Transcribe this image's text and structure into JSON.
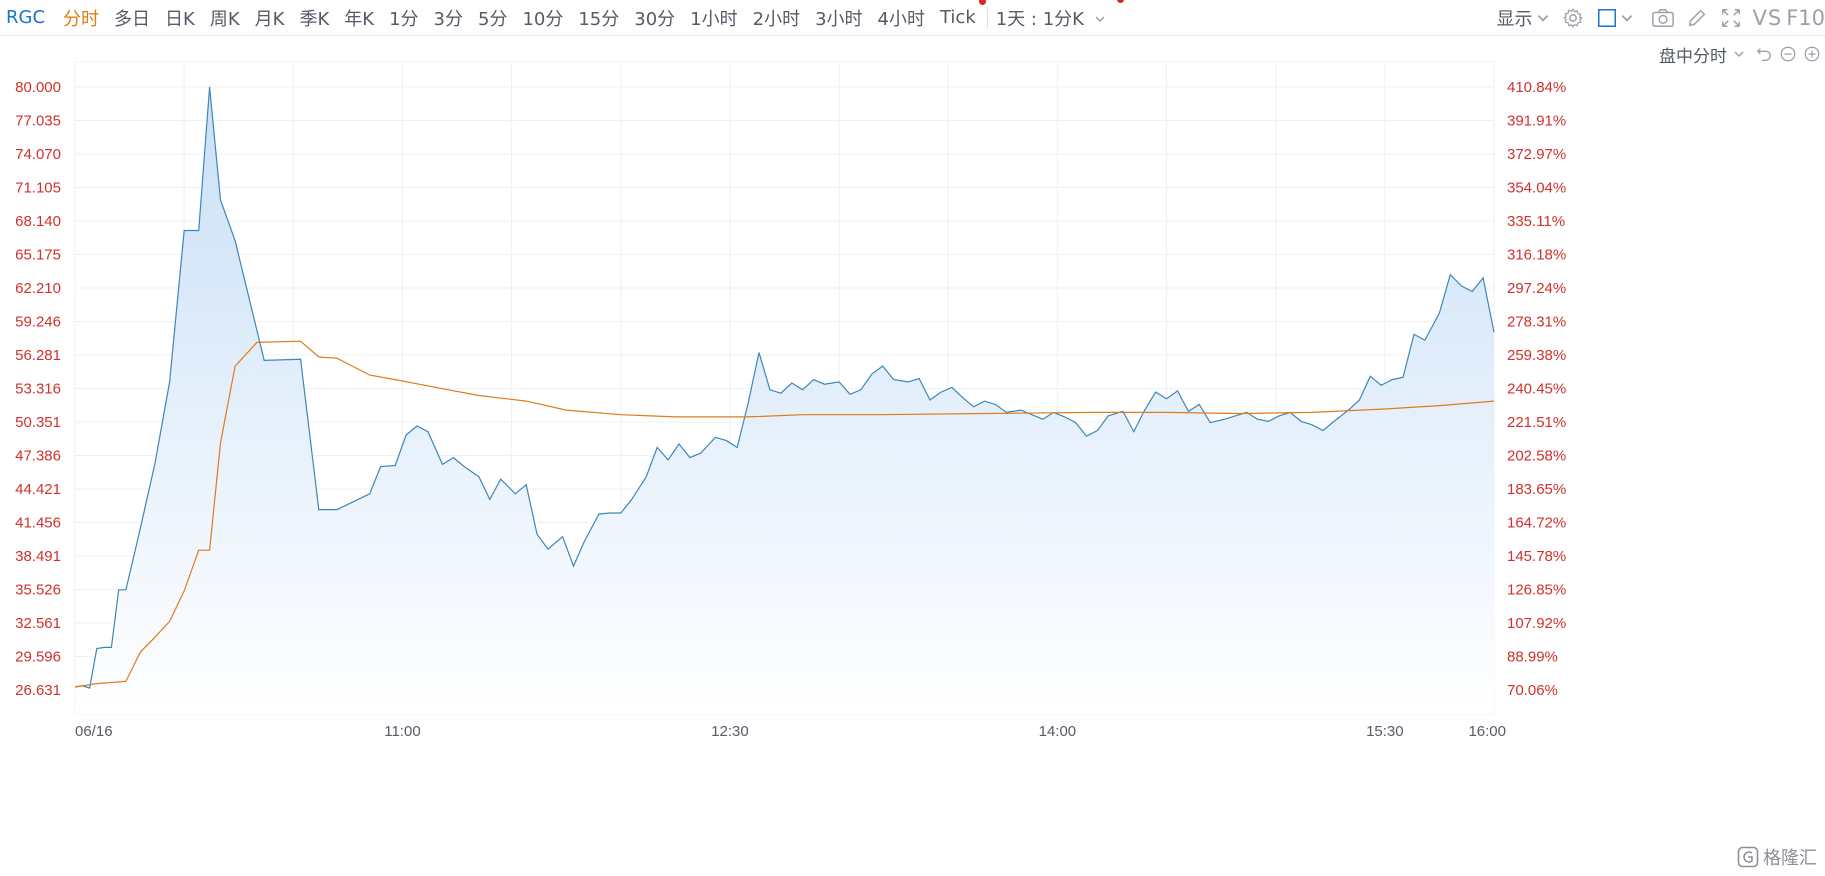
{
  "toolbar": {
    "symbol": "RGC",
    "tabs": [
      "分时",
      "多日",
      "日K",
      "周K",
      "月K",
      "季K",
      "年K",
      "1分",
      "3分",
      "5分",
      "10分",
      "15分",
      "30分",
      "1小时",
      "2小时",
      "3小时",
      "4小时",
      "Tick"
    ],
    "active_tab": "分时",
    "period_selector": "1天 : 1分K",
    "display_label": "显示",
    "vs_label": "VS",
    "f10_label": "F10"
  },
  "subbar": {
    "mode_label": "盘中分时"
  },
  "watermark": {
    "text": "格隆汇"
  },
  "colors": {
    "price_line": "#3d87b8",
    "avg_line": "#e07b1a",
    "fill_top": "#c9dff7",
    "fill_bottom": "#ffffff",
    "axis_text": "#d0312d",
    "grid": "#eef0f4",
    "accent": "#1a73c7"
  },
  "chart_data": {
    "type": "area",
    "y_ticks": [
      "80.000",
      "77.035",
      "74.070",
      "71.105",
      "68.140",
      "65.175",
      "62.210",
      "59.246",
      "56.281",
      "53.316",
      "50.351",
      "47.386",
      "44.421",
      "41.456",
      "38.491",
      "35.526",
      "32.561",
      "29.596",
      "26.631"
    ],
    "pct_ticks": [
      "410.84%",
      "391.91%",
      "372.97%",
      "354.04%",
      "335.11%",
      "316.18%",
      "297.24%",
      "278.31%",
      "259.38%",
      "240.45%",
      "221.51%",
      "202.58%",
      "183.65%",
      "164.72%",
      "145.78%",
      "126.85%",
      "107.92%",
      "88.99%",
      "70.06%"
    ],
    "x_labels": [
      "06/16",
      "11:00",
      "12:30",
      "14:00",
      "15:30",
      "16:00"
    ],
    "ylim": [
      26.631,
      80.0
    ],
    "x_range": [
      "09:30",
      "16:00"
    ],
    "grid": true,
    "series": [
      {
        "key": "price",
        "x": [
          0,
          2,
          4,
          6,
          8,
          10,
          12,
          14,
          18,
          22,
          26,
          30,
          34,
          37,
          40,
          44,
          52,
          62,
          67,
          72,
          81,
          84,
          88,
          91,
          94,
          97,
          101,
          104,
          107,
          111,
          114,
          117,
          121,
          124,
          127,
          130,
          134,
          137,
          140,
          144,
          147,
          150,
          153,
          157,
          160,
          163,
          166,
          169,
          172,
          176,
          179,
          182,
          185,
          188,
          191,
          194,
          197,
          200,
          203,
          206,
          210,
          213,
          216,
          219,
          222,
          225,
          229,
          232,
          235,
          238,
          241,
          244,
          247,
          250,
          253,
          256,
          260,
          263,
          266,
          269,
          272,
          275,
          278,
          281,
          284,
          288,
          291,
          294,
          297,
          300,
          303,
          306,
          309,
          312,
          316,
          319,
          322,
          325,
          328,
          331,
          334,
          337,
          340,
          343,
          346,
          350,
          353,
          356,
          359,
          362,
          365,
          368,
          371,
          375,
          378,
          381,
          384,
          387,
          390
        ],
        "y": [
          26.9,
          27.0,
          26.8,
          30.3,
          30.4,
          30.4,
          35.5,
          35.5,
          41.0,
          46.7,
          53.9,
          67.3,
          67.3,
          80.0,
          70.0,
          66.4,
          55.8,
          55.9,
          42.6,
          42.6,
          44.0,
          46.4,
          46.5,
          49.2,
          50.0,
          49.5,
          46.6,
          47.2,
          46.4,
          45.5,
          43.5,
          45.3,
          44.0,
          44.8,
          40.4,
          39.1,
          40.2,
          37.6,
          39.8,
          42.2,
          42.3,
          42.3,
          43.5,
          45.5,
          48.1,
          47.0,
          48.4,
          47.2,
          47.6,
          49.0,
          48.7,
          48.1,
          52.0,
          56.5,
          53.2,
          52.9,
          53.8,
          53.2,
          54.1,
          53.7,
          53.9,
          52.8,
          53.2,
          54.6,
          55.3,
          54.1,
          53.9,
          54.2,
          52.3,
          53.0,
          53.4,
          52.5,
          51.7,
          52.2,
          51.9,
          51.2,
          51.4,
          51.0,
          50.6,
          51.2,
          50.8,
          50.3,
          49.1,
          49.6,
          50.9,
          51.3,
          49.5,
          51.4,
          53.0,
          52.4,
          53.1,
          51.3,
          51.9,
          50.3,
          50.6,
          50.9,
          51.2,
          50.6,
          50.4,
          50.9,
          51.2,
          50.4,
          50.1,
          49.6,
          50.4,
          51.4,
          52.3,
          54.4,
          53.6,
          54.1,
          54.3,
          58.1,
          57.6,
          60.0,
          63.4,
          62.4,
          61.9,
          63.1,
          58.3
        ]
      },
      {
        "key": "avg",
        "x": [
          0,
          6,
          14,
          18,
          22,
          26,
          30,
          34,
          37,
          40,
          44,
          50,
          62,
          67,
          72,
          81,
          88,
          101,
          111,
          124,
          135,
          150,
          165,
          185,
          200,
          220,
          250,
          280,
          300,
          320,
          340,
          360,
          375,
          390
        ],
        "y": [
          26.9,
          27.2,
          27.4,
          30.0,
          31.3,
          32.7,
          35.4,
          39.0,
          39.0,
          48.5,
          55.3,
          57.4,
          57.5,
          56.1,
          56.0,
          54.5,
          54.1,
          53.3,
          52.7,
          52.2,
          51.4,
          51.0,
          50.8,
          50.8,
          51.0,
          51.0,
          51.1,
          51.2,
          51.2,
          51.1,
          51.2,
          51.5,
          51.8,
          52.2
        ]
      }
    ]
  }
}
